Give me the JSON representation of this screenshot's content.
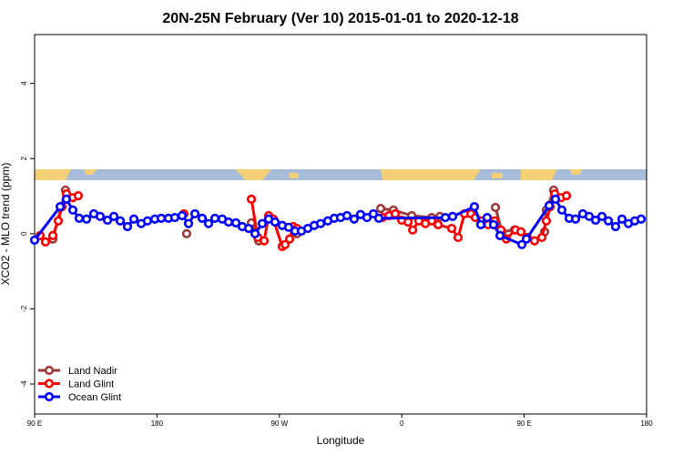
{
  "chart_data": {
    "type": "line",
    "title": "20N-25N February (Ver 10)   2015-01-01 to 2020-12-18",
    "x_label": "Longitude",
    "y_label": "XCO2 - MLO trend (ppm)",
    "xlim": [
      90,
      540
    ],
    "ylim": [
      -4.8,
      5.3
    ],
    "xticks": [
      {
        "value": 90,
        "label": "90 E"
      },
      {
        "value": 180,
        "label": "180"
      },
      {
        "value": 270,
        "label": "90 W"
      },
      {
        "value": 360,
        "label": "0"
      },
      {
        "value": 450,
        "label": "90 E"
      },
      {
        "value": 540,
        "label": "180"
      }
    ],
    "yticks": [
      -4,
      -2,
      0,
      2,
      4
    ],
    "grid": false,
    "legend": "bottom-left",
    "series": [
      {
        "name": "Land Nadir",
        "color": "#9c3a3a",
        "x": [
          103.4,
          112.7,
          null,
          201.8,
          null,
          249.4,
          254.8,
          null,
          282.9,
          null,
          344.5,
          353.9,
          367.3,
          382,
          388,
          null,
          428.9,
          433.6,
          442.9,
          null,
          465,
          466.3,
          471.7
        ],
        "values": [
          -0.14,
          1.16,
          null,
          0,
          null,
          0.29,
          -0.19,
          null,
          0,
          null,
          0.67,
          0.63,
          0.48,
          0.43,
          0.46,
          null,
          0.7,
          0.05,
          0.1,
          null,
          0.05,
          0.63,
          1.16
        ]
      },
      {
        "name": "Land Glint",
        "color": "#ff0000",
        "x": [
          94,
          98,
          103.4,
          107.4,
          110.1,
          113.4,
          118.1,
          122.1,
          null,
          199.8,
          null,
          249.4,
          254.1,
          258.8,
          262.1,
          265.5,
          272.1,
          274.2,
          277.5,
          280.2,
          282.9,
          null,
          345.8,
          350.5,
          355.2,
          359.9,
          364.6,
          368,
          372.6,
          377.3,
          382,
          386.7,
          396.7,
          401.4,
          406.1,
          410.8,
          414.1,
          418.1,
          423.5,
          428.2,
          432.9,
          436.9,
          443.6,
          447.6,
          452.3,
          457.6,
          463,
          466.3,
          469,
          472.4,
          477.1,
          481.1
        ],
        "values": [
          -0.05,
          -0.22,
          -0.05,
          0.34,
          0.72,
          1.06,
          0.96,
          1.01,
          null,
          0.53,
          null,
          0.92,
          -0.1,
          -0.19,
          0.48,
          0.39,
          -0.34,
          -0.29,
          -0.14,
          0.19,
          0.14,
          null,
          0.43,
          0.48,
          0.53,
          0.36,
          0.31,
          0.1,
          0.34,
          0.27,
          0.34,
          0.24,
          0.14,
          -0.1,
          0.53,
          0.53,
          0.43,
          0.34,
          0.24,
          0.34,
          0.1,
          -0.14,
          0.1,
          0.05,
          -0.1,
          -0.19,
          -0.1,
          0.34,
          0.72,
          1.06,
          0.96,
          1.01
        ]
      },
      {
        "name": "Ocean Glint",
        "color": "#0000ff",
        "x": [
          90,
          108.8,
          113.4,
          118.1,
          122.8,
          128.2,
          133.5,
          138.2,
          143.6,
          148.3,
          153,
          158.3,
          163,
          168.4,
          173,
          178.4,
          183.1,
          188.4,
          193.1,
          198.5,
          203.2,
          207.9,
          213.2,
          217.9,
          222.6,
          228,
          232.6,
          238,
          242.7,
          247.4,
          252.1,
          257.4,
          262.1,
          266.8,
          272.1,
          276.8,
          281.5,
          286.2,
          290.9,
          295.6,
          300.3,
          305.6,
          310.3,
          315,
          319.7,
          325,
          329.7,
          334.4,
          339.1,
          343.1,
          392,
          397.4,
          413.4,
          418.1,
          422.8,
          427.5,
          432.2,
          448.3,
          451.6,
          468.4,
          473,
          477.7,
          483.1,
          487.8,
          493.1,
          497.8,
          502.5,
          507.2,
          511.9,
          517.2,
          521.9,
          526.6,
          531.3,
          536
        ],
        "values": [
          -0.17,
          0.72,
          0.92,
          0.63,
          0.41,
          0.39,
          0.53,
          0.46,
          0.36,
          0.46,
          0.34,
          0.19,
          0.39,
          0.27,
          0.34,
          0.39,
          0.41,
          0.41,
          0.43,
          0.48,
          0.27,
          0.53,
          0.41,
          0.27,
          0.41,
          0.39,
          0.31,
          0.29,
          0.19,
          0.14,
          0,
          0.27,
          0.39,
          0.31,
          0.22,
          0.17,
          0.07,
          0.07,
          0.14,
          0.22,
          0.27,
          0.34,
          0.41,
          0.43,
          0.48,
          0.39,
          0.51,
          0.43,
          0.53,
          0.41,
          0.43,
          0.46,
          0.72,
          0.24,
          0.43,
          0.24,
          -0.05,
          -0.29,
          -0.14,
          0.75,
          0.92,
          0.63,
          0.41,
          0.39,
          0.53,
          0.46,
          0.36,
          0.46,
          0.34,
          0.19,
          0.39,
          0.27,
          0.34,
          0.39
        ]
      }
    ]
  }
}
